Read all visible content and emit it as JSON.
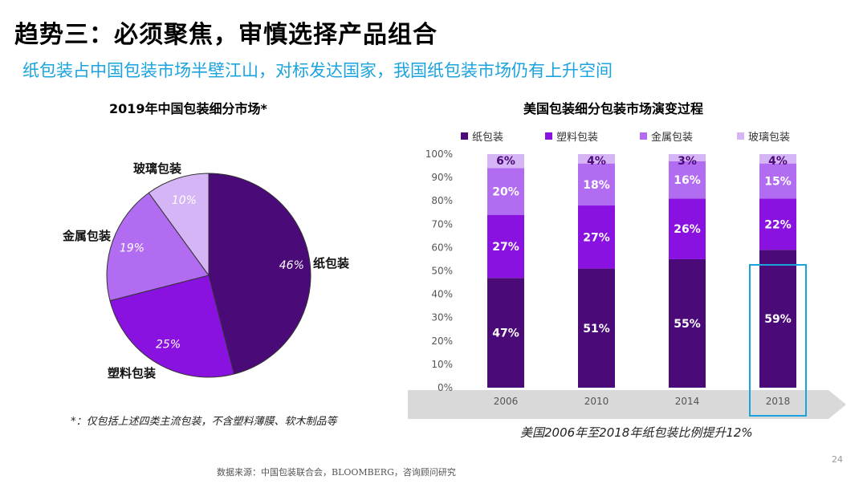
{
  "header": {
    "title": "趋势三：必须聚焦，审慎选择产品组合",
    "subtitle": "纸包装占中国包装市场半壁江山，对标发达国家，我国纸包装市场仍有上升空间"
  },
  "colors": {
    "paper": "#4a0a78",
    "plastic": "#8a12e0",
    "metal": "#b26cf2",
    "glass": "#d6b5f7",
    "highlight": "#1aa3dc"
  },
  "chart_data": [
    {
      "type": "pie",
      "title": "2019年中国包装细分市场*",
      "slices": [
        {
          "label": "纸包装",
          "value": 46,
          "display": "46%"
        },
        {
          "label": "塑料包装",
          "value": 25,
          "display": "25%"
        },
        {
          "label": "金属包装",
          "value": 19,
          "display": "19%"
        },
        {
          "label": "玻璃包装",
          "value": 10,
          "display": "10%"
        }
      ]
    },
    {
      "type": "bar",
      "stacked": true,
      "title": "美国包装细分包装市场演变过程",
      "categories": [
        "2006",
        "2010",
        "2014",
        "2018"
      ],
      "series": [
        {
          "name": "纸包装",
          "values": [
            47,
            51,
            55,
            59
          ],
          "labels": [
            "47%",
            "51%",
            "55%",
            "59%"
          ]
        },
        {
          "name": "塑料包装",
          "values": [
            27,
            27,
            26,
            22
          ],
          "labels": [
            "27%",
            "27%",
            "26%",
            "22%"
          ]
        },
        {
          "name": "金属包装",
          "values": [
            20,
            18,
            16,
            15
          ],
          "labels": [
            "20%",
            "18%",
            "16%",
            "15%"
          ]
        },
        {
          "name": "玻璃包装",
          "values": [
            6,
            4,
            3,
            4
          ],
          "labels": [
            "6%",
            "4%",
            "3%",
            "4%"
          ]
        }
      ],
      "yticks": [
        "0%",
        "10%",
        "20%",
        "30%",
        "40%",
        "50%",
        "60%",
        "70%",
        "80%",
        "90%",
        "100%"
      ],
      "ylim": [
        0,
        100
      ],
      "highlight_category": "2018",
      "legend_position": "top"
    }
  ],
  "footnote": "*：仅包括上述四类主流包装，不含塑料薄膜、软木制品等",
  "caption": "美国2006年至2018年纸包装比例提升12%",
  "source": "数据来源：中国包装联合会，BLOOMBERG，咨询顾问研究",
  "page_number": "24"
}
